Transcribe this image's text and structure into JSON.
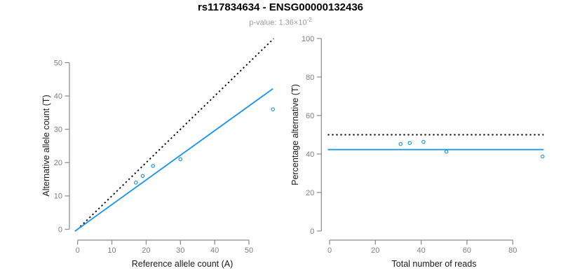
{
  "header": {
    "title": "rs117834634 - ENSG00000132436",
    "pvalue_prefix": "p-value: 1.36×10",
    "pvalue_exponent": "-2"
  },
  "colors": {
    "accent_blue": "#2297E6",
    "line_black": "#000000",
    "axis_gray": "#8a8a8a",
    "tick_label_gray": "#7f7f7f",
    "axis_title_color": "#1a1a1a",
    "subtitle_gray": "#999999"
  },
  "chart_data": [
    {
      "type": "scatter",
      "panel": "allele-counts",
      "xlabel": "Reference allele count (A)",
      "ylabel": "Alternative allele count (T)",
      "x": [
        17,
        19,
        22,
        30,
        57
      ],
      "y": [
        14,
        16,
        19,
        21,
        36
      ],
      "xticks": [
        0,
        10,
        20,
        30,
        40,
        50
      ],
      "yticks": [
        0,
        10,
        20,
        30,
        40,
        50
      ],
      "xlim": [
        -1,
        57.5
      ],
      "ylim": [
        -1.5,
        57.5
      ],
      "grid": false,
      "legend": null,
      "lines": [
        {
          "name": "identity-line",
          "style": "dotted",
          "color": "#000000",
          "slope": 1,
          "intercept": 0,
          "x_start": 0.8,
          "x_end": 57.2
        },
        {
          "name": "fit-line",
          "style": "solid",
          "color": "#2297E6",
          "slope": 0.74,
          "intercept": 0,
          "x_start": -0.8,
          "x_end": 57.0
        }
      ]
    },
    {
      "type": "scatter",
      "panel": "percentage-alternative",
      "xlabel": "Total number of reads",
      "ylabel": "Percentage alternative (T)",
      "x": [
        31,
        35,
        41,
        51,
        93
      ],
      "y": [
        45.2,
        45.7,
        46.3,
        41.2,
        38.7
      ],
      "xticks": [
        0,
        20,
        40,
        60,
        80
      ],
      "yticks": [
        0,
        20,
        40,
        60,
        80,
        100
      ],
      "xlim": [
        -0.8,
        93.5
      ],
      "ylim": [
        0,
        100
      ],
      "grid": false,
      "legend": null,
      "hlines": [
        {
          "name": "fifty-percent-line",
          "style": "dotted",
          "color": "#000000",
          "y": 50
        },
        {
          "name": "mean-percentage-line",
          "style": "solid",
          "color": "#2297E6",
          "y": 42.3
        }
      ]
    }
  ]
}
